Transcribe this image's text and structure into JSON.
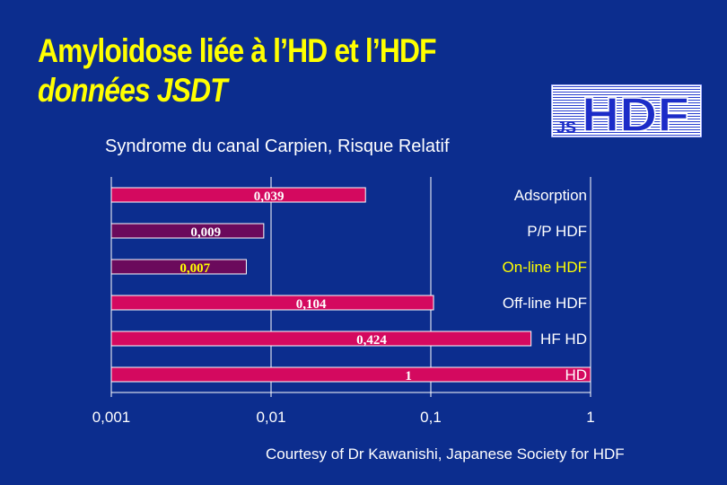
{
  "slide": {
    "title_line1": "Amyloidose liée à l’HD et l’HDF",
    "title_line2": "données JSDT",
    "subtitle": "Syndrome du canal Carpien, Risque Relatif",
    "footnote": "Courtesy of Dr Kawanishi, Japanese Society for HDF"
  },
  "logo": {
    "small_text": "JS",
    "big_text": "HDF"
  },
  "colors": {
    "background": "#0c2d8e",
    "title": "#ffff00",
    "bar_pink": "#d4095f",
    "bar_purple": "#6b0a5c",
    "highlight_label": "#ffff00"
  },
  "chart_data": {
    "type": "bar",
    "orientation": "horizontal",
    "x_scale": "log",
    "xlim": [
      0.001,
      1
    ],
    "x_ticks": [
      "0,001",
      "0,01",
      "0,1",
      "1"
    ],
    "x_tick_values": [
      0.001,
      0.01,
      0.1,
      1
    ],
    "grid": true,
    "categories": [
      "Adsorption",
      "P/P HDF",
      "On-line HDF",
      "Off-line HDF",
      "HF HD",
      "HD"
    ],
    "values": [
      0.039,
      0.009,
      0.007,
      0.104,
      0.424,
      1
    ],
    "value_labels": [
      "0,039",
      "0,009",
      "0,007",
      "0,104",
      "0,424",
      "1"
    ],
    "bar_colors": [
      "#d4095f",
      "#6b0a5c",
      "#6b0a5c",
      "#d4095f",
      "#d4095f",
      "#d4095f"
    ],
    "label_colors": [
      "#ffffff",
      "#ffffff",
      "#ffff00",
      "#ffffff",
      "#ffffff",
      "#ffffff"
    ],
    "value_label_colors": [
      "#ffffff",
      "#ffffff",
      "#ffff00",
      "#ffffff",
      "#ffffff",
      "#ffffff"
    ]
  }
}
